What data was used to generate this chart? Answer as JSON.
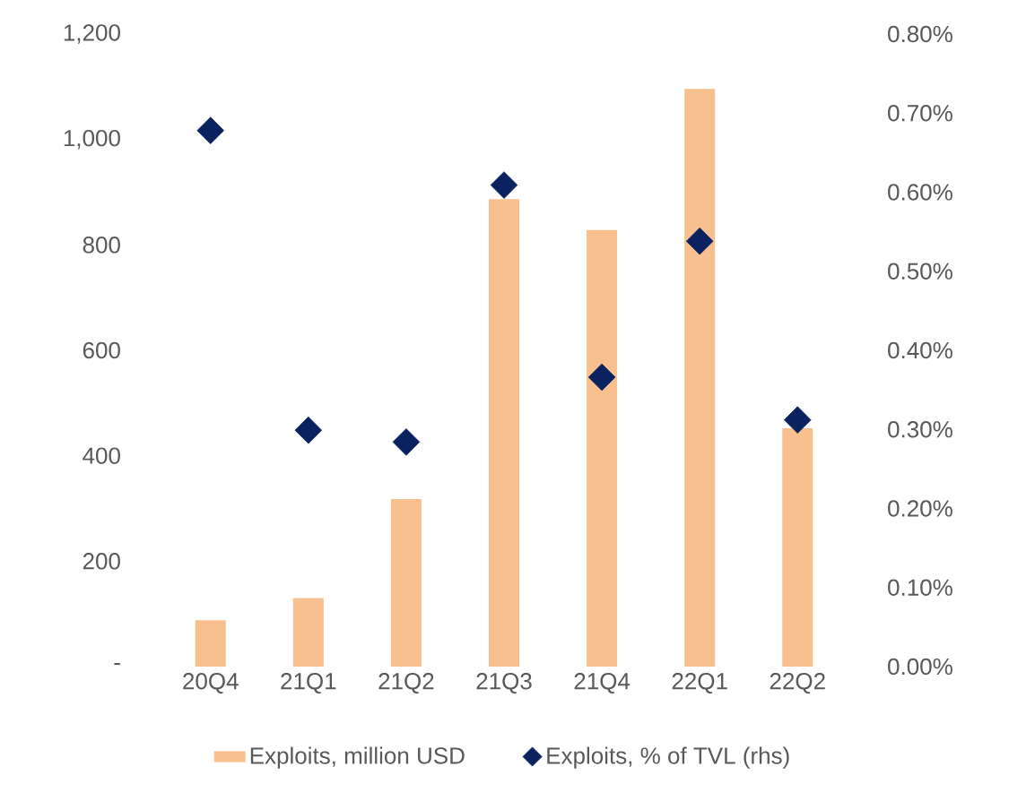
{
  "chart_data": {
    "type": "bar",
    "categories": [
      "20Q4",
      "21Q1",
      "21Q2",
      "21Q3",
      "21Q4",
      "22Q1",
      "22Q2"
    ],
    "series": [
      {
        "name": "Exploits, million USD",
        "color": "#f9c08f",
        "values": [
          88,
          130,
          318,
          887,
          828,
          1096,
          452
        ]
      },
      {
        "name": "Exploits, % of TVL (rhs)",
        "type": "scatter",
        "axis": "y2",
        "marker": "diamond",
        "color": "#0b2260",
        "values": [
          0.678,
          0.299,
          0.284,
          0.609,
          0.366,
          0.538,
          0.312
        ]
      }
    ],
    "ylim": [
      0,
      1200
    ],
    "yticks": [
      {
        "value": 0,
        "label": "-"
      },
      {
        "value": 200,
        "label": "200"
      },
      {
        "value": 400,
        "label": "400"
      },
      {
        "value": 600,
        "label": "600"
      },
      {
        "value": 800,
        "label": "800"
      },
      {
        "value": 1000,
        "label": "1,000"
      },
      {
        "value": 1200,
        "label": "1,200"
      }
    ],
    "y2lim": [
      0,
      0.8
    ],
    "y2ticks": [
      {
        "value": 0,
        "label": "0.00%"
      },
      {
        "value": 0.1,
        "label": "0.10%"
      },
      {
        "value": 0.2,
        "label": "0.20%"
      },
      {
        "value": 0.3,
        "label": "0.30%"
      },
      {
        "value": 0.4,
        "label": "0.40%"
      },
      {
        "value": 0.5,
        "label": "0.50%"
      },
      {
        "value": 0.6,
        "label": "0.60%"
      },
      {
        "value": 0.7,
        "label": "0.70%"
      },
      {
        "value": 0.8,
        "label": "0.80%"
      }
    ],
    "legend": "bottom"
  }
}
